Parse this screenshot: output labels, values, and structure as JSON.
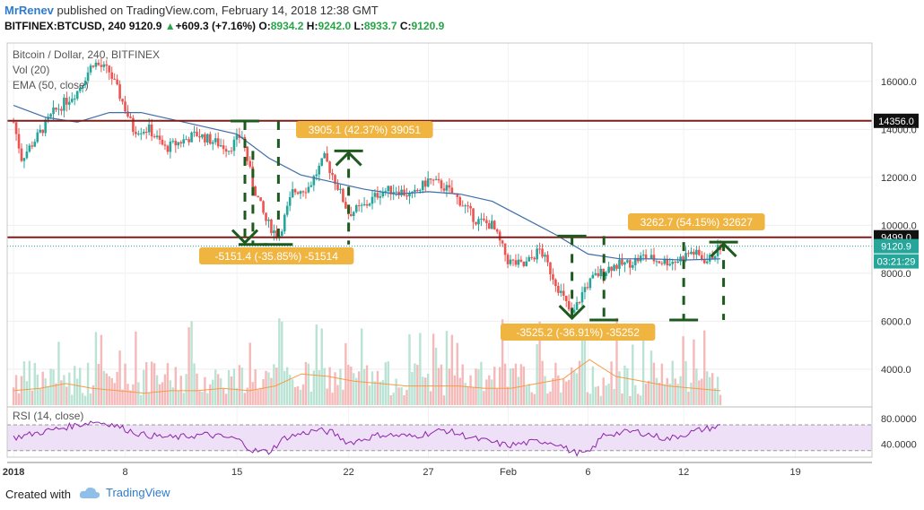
{
  "header": {
    "author": "MrRenev",
    "published_text": "published on TradingView.com, February 14, 2018 12:38 GMT",
    "symbol_line": "BITFINEX:BTCUSD, 240",
    "last_price": "9120.9",
    "change": "+609.3 (+7.16%)",
    "open_label": "O:",
    "open": "8934.2",
    "high_label": "H:",
    "high": "9242.0",
    "low_label": "L:",
    "low": "8933.7",
    "close_label": "C:",
    "close": "9120.9"
  },
  "footer": {
    "created_with": "Created with",
    "brand": "TradingView"
  },
  "colors": {
    "up": "#26a69a",
    "down": "#ef5350",
    "ema": "#3f6ea8",
    "level": "#7a1e1e",
    "annotation": "#f0b440",
    "drawing": "#1e5a1e",
    "rsi": "#8e24aa",
    "rsi_band": "#ede0f7",
    "vol_ma": "#f39c45"
  },
  "chart_data": {
    "type": "candlestick",
    "title": "Bitcoin / Dollar, 240, BITFINEX",
    "legend": [
      "Vol (20)",
      "EMA (50, close)"
    ],
    "y_ticks": [
      "16000.0",
      "14000.0",
      "12000.0",
      "10000.0",
      "8000.0",
      "6000.0",
      "4000.0"
    ],
    "y_tick_values": [
      16000,
      14000,
      12000,
      10000,
      8000,
      6000,
      4000
    ],
    "ylim": [
      2500,
      17600
    ],
    "x_ticks": [
      "2018",
      "8",
      "15",
      "22",
      "27",
      "Feb",
      "6",
      "12",
      "19"
    ],
    "x_tick_days": [
      1,
      8,
      15,
      22,
      27,
      32,
      37,
      43,
      50
    ],
    "xlim_days": [
      0.6,
      54.8
    ],
    "path_days": [
      1,
      1.5,
      2.5,
      3.5,
      5,
      6,
      7,
      7.8,
      8.5,
      9.5,
      10.5,
      11.5,
      12.5,
      13.5,
      14.5,
      15.3,
      16,
      16.8,
      17.6,
      18.5,
      19.5,
      20.5,
      21.2,
      22,
      23,
      24,
      25,
      26,
      27,
      28,
      29,
      30,
      31,
      32,
      33,
      34,
      35,
      36,
      36.8,
      37.5,
      38.5,
      39.5,
      40.5,
      41.5,
      42.5,
      43.5,
      44.5,
      45.3
    ],
    "path_close": [
      14300,
      12800,
      13700,
      14700,
      15600,
      16800,
      16400,
      15200,
      14000,
      14000,
      13200,
      13500,
      13800,
      13500,
      13200,
      13800,
      11700,
      10200,
      9500,
      11400,
      11600,
      12800,
      11800,
      10500,
      10800,
      11400,
      11500,
      11200,
      11900,
      11600,
      11000,
      10200,
      10000,
      8500,
      8300,
      9000,
      7600,
      6200,
      7400,
      7900,
      8300,
      8400,
      8700,
      8500,
      8500,
      8900,
      8500,
      9120
    ],
    "ema_days": [
      1,
      3,
      5,
      7,
      9,
      11,
      13,
      15,
      17,
      19,
      21,
      23,
      25,
      27,
      29,
      31,
      33,
      35,
      37,
      39,
      41,
      43,
      45.3
    ],
    "ema_values": [
      15000,
      14500,
      14300,
      14700,
      14700,
      14400,
      14100,
      13800,
      12800,
      12100,
      11800,
      11500,
      11300,
      11400,
      11300,
      11000,
      10300,
      9600,
      8800,
      8600,
      8600,
      8550,
      8600
    ],
    "levels": [
      14356.0,
      9499.0
    ],
    "level_labels": [
      "14356.0",
      "9499.0"
    ],
    "price_label": "9120.9",
    "countdown_label": "03:21:29",
    "dotted_level": 9130,
    "measurements": [
      {
        "label": "3905.1 (42.37%) 39051",
        "start_day": 16,
        "end_day": 22,
        "low": 9200,
        "high": 13100
      },
      {
        "label": "-5151.4 (-35.85%) -51514",
        "start_day": 15.5,
        "end_day": 17.6,
        "low": 9200,
        "high": 14350
      },
      {
        "label": "3262.7 (54.15%) 32627",
        "start_day": 43,
        "end_day": 45.5,
        "low": 6050,
        "high": 9300
      },
      {
        "label": "-3525.2 (-36.91%) -35252",
        "start_day": 36,
        "end_day": 38,
        "low": 6050,
        "high": 9550
      }
    ],
    "volume_avg_path": [
      3100,
      3200,
      3400,
      3200,
      3100,
      3000,
      3100,
      3100,
      3200,
      3100,
      3300,
      3800,
      3700,
      3500,
      3400,
      3300,
      3300,
      3300,
      3200,
      3200,
      3400,
      3600,
      4400,
      3700,
      3500,
      3300,
      3200,
      3100
    ],
    "rsi": {
      "legend": "RSI (14, close)",
      "y_ticks": [
        "80.0000",
        "40.0000"
      ],
      "y_tick_values": [
        80,
        40
      ],
      "ylim": [
        20,
        95
      ],
      "band": [
        70,
        30
      ],
      "path_days": [
        1,
        3,
        5,
        6,
        7,
        9,
        11,
        13,
        15,
        16,
        17,
        18,
        20,
        21,
        22,
        24,
        26,
        28,
        30,
        32,
        34,
        35,
        36,
        37,
        38,
        40,
        42,
        44,
        45.3
      ],
      "path_values": [
        50,
        60,
        70,
        75,
        72,
        55,
        50,
        55,
        48,
        30,
        28,
        50,
        62,
        58,
        42,
        55,
        52,
        62,
        48,
        38,
        45,
        42,
        28,
        25,
        55,
        60,
        48,
        62,
        68
      ]
    }
  }
}
